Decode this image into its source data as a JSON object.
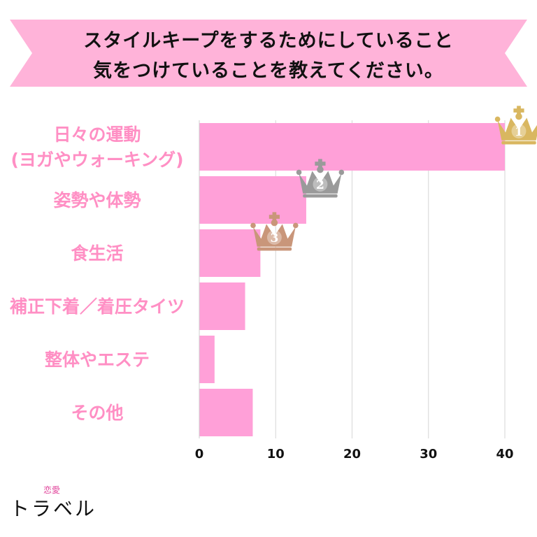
{
  "title": {
    "line1": "スタイルキープをするためにしていること",
    "line2": "気をつけていることを教えてください。"
  },
  "colors": {
    "banner": "#ffb3d9",
    "bar": "#ffa0d8",
    "label": "#ff8fc4",
    "gold": "#d9b760",
    "silver": "#9a9a9a",
    "bronze": "#c9967a"
  },
  "chart_data": {
    "type": "bar",
    "orientation": "horizontal",
    "categories": [
      [
        "日々の運動",
        "(ヨガやウォーキング)"
      ],
      [
        "姿勢や体勢"
      ],
      [
        "食生活"
      ],
      [
        "補正下着／着圧タイツ"
      ],
      [
        "整体やエステ"
      ],
      [
        "その他"
      ]
    ],
    "values": [
      40,
      14,
      8,
      6,
      2,
      7
    ],
    "xlim": [
      0,
      40
    ],
    "xticks": [
      0,
      10,
      20,
      30,
      40
    ],
    "grid": true,
    "rank_badges": [
      {
        "rank": "1",
        "category_index": 0,
        "color": "#d9b760"
      },
      {
        "rank": "2",
        "category_index": 1,
        "color": "#9a9a9a"
      },
      {
        "rank": "3",
        "category_index": 2,
        "color": "#c9967a"
      }
    ]
  },
  "logo": {
    "small": "恋愛",
    "main": "トラベル"
  }
}
